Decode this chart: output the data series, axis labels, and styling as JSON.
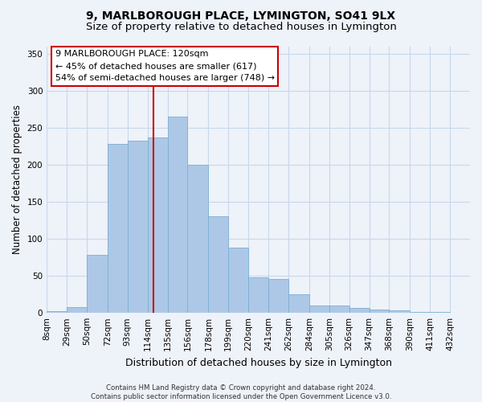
{
  "title": "9, MARLBOROUGH PLACE, LYMINGTON, SO41 9LX",
  "subtitle": "Size of property relative to detached houses in Lymington",
  "xlabel": "Distribution of detached houses by size in Lymington",
  "ylabel": "Number of detached properties",
  "bar_color": "#adc8e6",
  "bar_edge_color": "#7aafd4",
  "grid_color": "#c8d8ec",
  "bg_color": "#eef2f9",
  "vline_color": "#cc0000",
  "vline_x": 120,
  "annotation_text": "9 MARLBOROUGH PLACE: 120sqm\n← 45% of detached houses are smaller (617)\n54% of semi-detached houses are larger (748) →",
  "annotation_box_color": "#ffffff",
  "annotation_box_edge": "#cc0000",
  "footnote": "Contains HM Land Registry data © Crown copyright and database right 2024.\nContains public sector information licensed under the Open Government Licence v3.0.",
  "bin_edges": [
    8,
    29,
    50,
    72,
    93,
    114,
    135,
    156,
    178,
    199,
    220,
    241,
    262,
    284,
    305,
    326,
    347,
    368,
    390,
    411,
    432,
    453
  ],
  "bar_heights": [
    2,
    8,
    78,
    228,
    232,
    237,
    265,
    200,
    130,
    88,
    48,
    46,
    25,
    10,
    10,
    7,
    5,
    3,
    1,
    1,
    0
  ],
  "ylim": [
    0,
    360
  ],
  "yticks": [
    0,
    50,
    100,
    150,
    200,
    250,
    300,
    350
  ],
  "xtick_labels": [
    "8sqm",
    "29sqm",
    "50sqm",
    "72sqm",
    "93sqm",
    "114sqm",
    "135sqm",
    "156sqm",
    "178sqm",
    "199sqm",
    "220sqm",
    "241sqm",
    "262sqm",
    "284sqm",
    "305sqm",
    "326sqm",
    "347sqm",
    "368sqm",
    "390sqm",
    "411sqm",
    "432sqm"
  ],
  "title_fontsize": 10,
  "subtitle_fontsize": 9.5,
  "xlabel_fontsize": 9,
  "ylabel_fontsize": 8.5,
  "tick_labelsize": 7.5,
  "annot_fontsize": 8
}
